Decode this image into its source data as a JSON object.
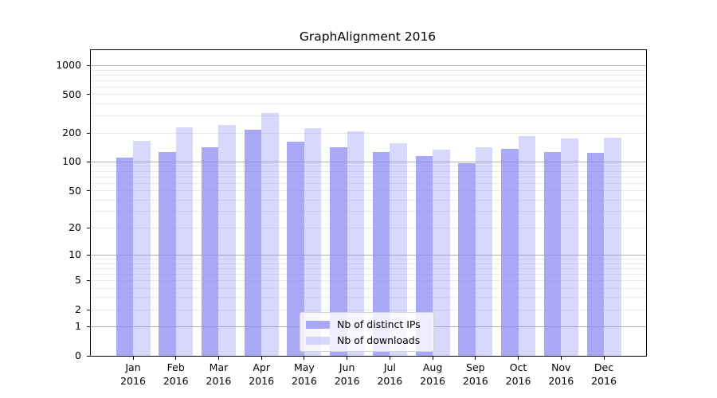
{
  "chart_data": {
    "type": "bar",
    "title": "GraphAlignment 2016",
    "categories": [
      "Jan",
      "Feb",
      "Mar",
      "Apr",
      "May",
      "Jun",
      "Jul",
      "Aug",
      "Sep",
      "Oct",
      "Nov",
      "Dec"
    ],
    "category_year": "2016",
    "series": [
      {
        "name": "Nb of distinct IPs",
        "color": "#8989f5",
        "alpha": 0.73,
        "values": [
          112,
          126,
          142,
          216,
          164,
          141,
          127,
          116,
          98,
          137,
          126,
          124
        ]
      },
      {
        "name": "Nb of downloads",
        "color": "#8989f5",
        "alpha": 0.33,
        "values": [
          167,
          228,
          242,
          322,
          227,
          207,
          158,
          134,
          141,
          186,
          177,
          178
        ]
      }
    ],
    "xlabel": "",
    "ylabel": "",
    "y_scale": "log1p",
    "ylim": [
      0,
      1450
    ],
    "y_ticks": [
      1000,
      500,
      200,
      100,
      50,
      20,
      10,
      5,
      2,
      1,
      0
    ],
    "y_major_gridlines": [
      1,
      10,
      100,
      1000
    ],
    "y_minor_gridlines": [
      2,
      3,
      4,
      5,
      6,
      7,
      8,
      9,
      20,
      30,
      40,
      50,
      60,
      70,
      80,
      90,
      200,
      300,
      400,
      500,
      600,
      700,
      800,
      900
    ],
    "grid": true,
    "legend": {
      "position": "lower center"
    },
    "colors": {
      "major_grid": "#b0b0b0",
      "minor_grid": "#eaeaea",
      "spine": "#000000",
      "text": "#000000"
    }
  }
}
